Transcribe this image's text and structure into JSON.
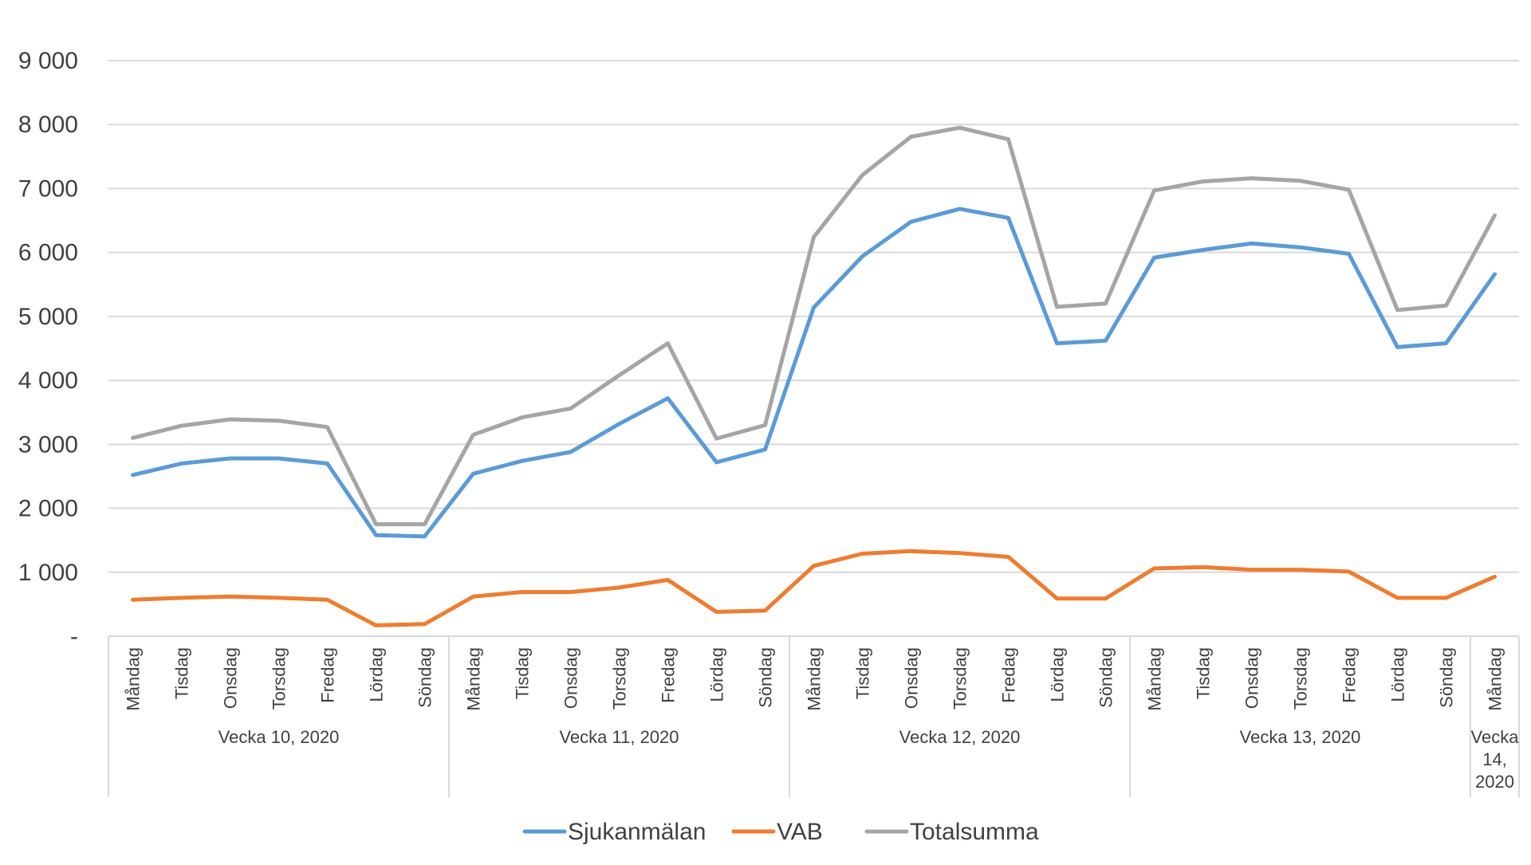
{
  "chart_data": {
    "type": "line",
    "title": "",
    "xlabel": "",
    "ylabel": "",
    "ylim": [
      0,
      9000
    ],
    "yticks": [
      0,
      1000,
      2000,
      3000,
      4000,
      5000,
      6000,
      7000,
      8000,
      9000
    ],
    "ytick_labels": [
      "-",
      "1 000",
      "2 000",
      "3 000",
      "4 000",
      "5 000",
      "6 000",
      "7 000",
      "8 000",
      "9 000"
    ],
    "grid": "horizontal",
    "legend": "bottom",
    "categories": [
      "Måndag",
      "Tisdag",
      "Onsdag",
      "Torsdag",
      "Fredag",
      "Lördag",
      "Söndag",
      "Måndag",
      "Tisdag",
      "Onsdag",
      "Torsdag",
      "Fredag",
      "Lördag",
      "Söndag",
      "Måndag",
      "Tisdag",
      "Onsdag",
      "Torsdag",
      "Fredag",
      "Lördag",
      "Söndag",
      "Måndag",
      "Tisdag",
      "Onsdag",
      "Torsdag",
      "Fredag",
      "Lördag",
      "Söndag",
      "Måndag"
    ],
    "groups": [
      {
        "label": "Vecka 10, 2020",
        "count": 7
      },
      {
        "label": "Vecka 11, 2020",
        "count": 7
      },
      {
        "label": "Vecka 12, 2020",
        "count": 7
      },
      {
        "label": "Vecka 13, 2020",
        "count": 7
      },
      {
        "label": "Vecka 14, 2020",
        "lines": [
          "Vecka",
          "14,",
          "2020"
        ],
        "count": 1
      }
    ],
    "series": [
      {
        "name": "Sjukanmälan",
        "color": "#5B9BD5",
        "values": [
          2520,
          2700,
          2780,
          2780,
          2700,
          1580,
          1560,
          2540,
          2740,
          2880,
          3320,
          3720,
          2720,
          2920,
          5140,
          5940,
          6480,
          6680,
          6540,
          4580,
          4620,
          5920,
          6040,
          6140,
          6080,
          5980,
          4520,
          4580,
          5660
        ]
      },
      {
        "name": "VAB",
        "color": "#ED7D31",
        "values": [
          570,
          600,
          620,
          600,
          570,
          170,
          190,
          620,
          690,
          690,
          760,
          880,
          380,
          400,
          1100,
          1290,
          1330,
          1300,
          1240,
          590,
          590,
          1060,
          1080,
          1040,
          1040,
          1010,
          600,
          600,
          930
        ]
      },
      {
        "name": "Totalsumma",
        "color": "#A5A5A5",
        "values": [
          3100,
          3290,
          3390,
          3370,
          3270,
          1750,
          1750,
          3150,
          3420,
          3560,
          4080,
          4580,
          3090,
          3300,
          6240,
          7210,
          7810,
          7950,
          7770,
          5150,
          5200,
          6970,
          7110,
          7160,
          7120,
          6980,
          5100,
          5170,
          6580
        ]
      }
    ]
  }
}
